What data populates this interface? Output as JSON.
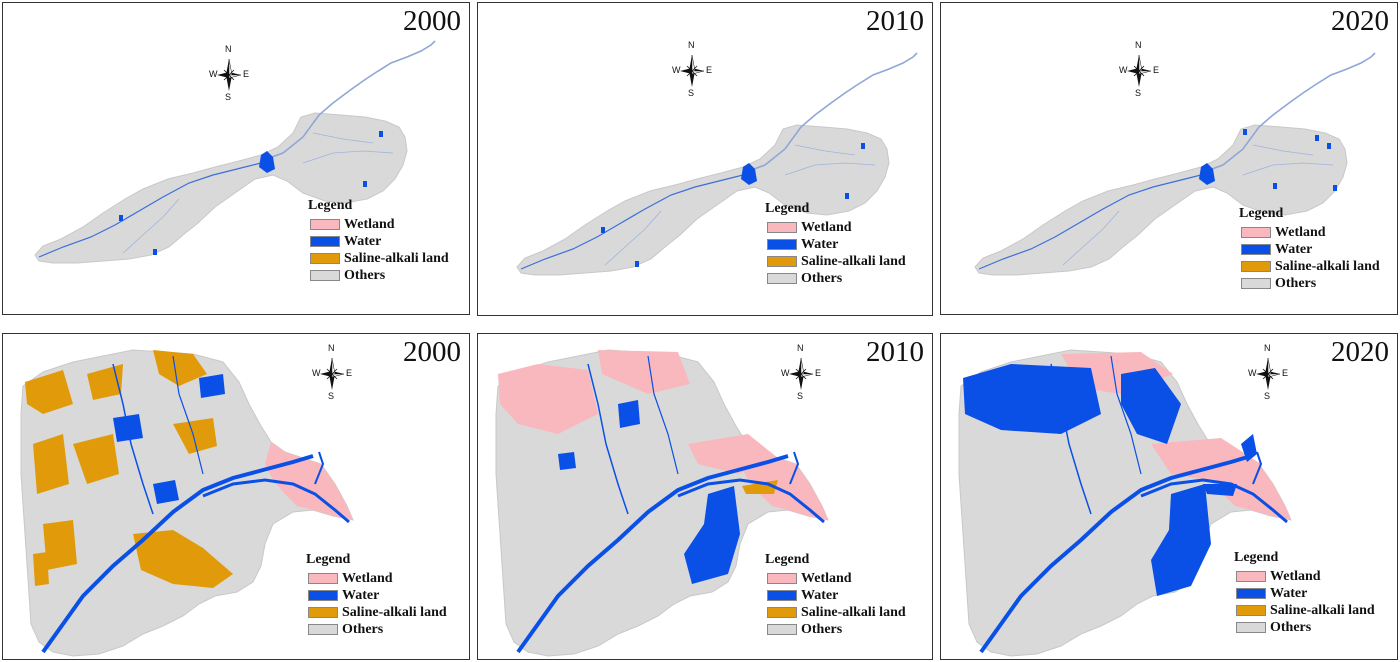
{
  "colors": {
    "wetland": "#f9b8bd",
    "water": "#0a4fe6",
    "saline": "#e19b0a",
    "others": "#d9d9d9",
    "border": "#333333"
  },
  "compass": {
    "n": "N",
    "s": "S",
    "e": "E",
    "w": "W"
  },
  "legend": {
    "title": "Legend",
    "items": [
      {
        "label": "Wetland",
        "key": "wetland"
      },
      {
        "label": "Water",
        "key": "water"
      },
      {
        "label": "Saline-alkali land",
        "key": "saline"
      },
      {
        "label": "Others",
        "key": "others"
      }
    ]
  },
  "panels": [
    {
      "year": "2000",
      "region": "basin"
    },
    {
      "year": "2010",
      "region": "basin"
    },
    {
      "year": "2020",
      "region": "basin"
    },
    {
      "year": "2000",
      "region": "delta"
    },
    {
      "year": "2010",
      "region": "delta"
    },
    {
      "year": "2020",
      "region": "delta"
    }
  ]
}
